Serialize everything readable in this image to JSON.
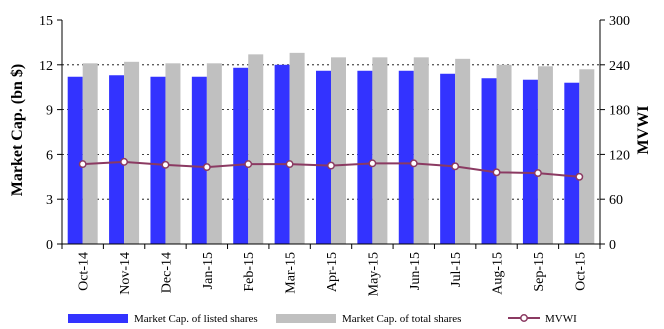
{
  "chart_data": {
    "type": "bar",
    "categories": [
      "Oct-14",
      "Nov-14",
      "Dec-14",
      "Jan-15",
      "Feb-15",
      "Mar-15",
      "Apr-15",
      "May-15",
      "Jun-15",
      "Jul-15",
      "Aug-15",
      "Sep-15",
      "Oct-15"
    ],
    "series": [
      {
        "name": "Market Cap. of listed shares",
        "type": "bar",
        "axis": "left",
        "color": "#3333FF",
        "values": [
          11.2,
          11.3,
          11.2,
          11.2,
          11.8,
          12.0,
          11.6,
          11.6,
          11.6,
          11.4,
          11.1,
          11.0,
          10.8
        ]
      },
      {
        "name": "Market Cap. of total shares",
        "type": "bar",
        "axis": "left",
        "color": "#C0C0C0",
        "values": [
          12.1,
          12.2,
          12.1,
          12.1,
          12.7,
          12.8,
          12.5,
          12.5,
          12.5,
          12.4,
          12.0,
          11.9,
          11.7
        ]
      },
      {
        "name": "MVWI",
        "type": "line",
        "axis": "right",
        "color": "#8B3A62",
        "values": [
          107,
          110,
          106,
          103,
          107,
          107,
          105,
          108,
          108,
          104,
          96,
          95,
          90
        ]
      }
    ],
    "ylabel": "Market Cap. (bn $)",
    "ylim": [
      0,
      15
    ],
    "yticks": [
      "0",
      "3",
      "6",
      "9",
      "12",
      "15"
    ],
    "y2label": "MVWI",
    "y2lim": [
      0,
      300
    ],
    "y2ticks": [
      "0",
      "60",
      "120",
      "180",
      "240",
      "300"
    ],
    "grid": true,
    "legend_position": "bottom"
  }
}
